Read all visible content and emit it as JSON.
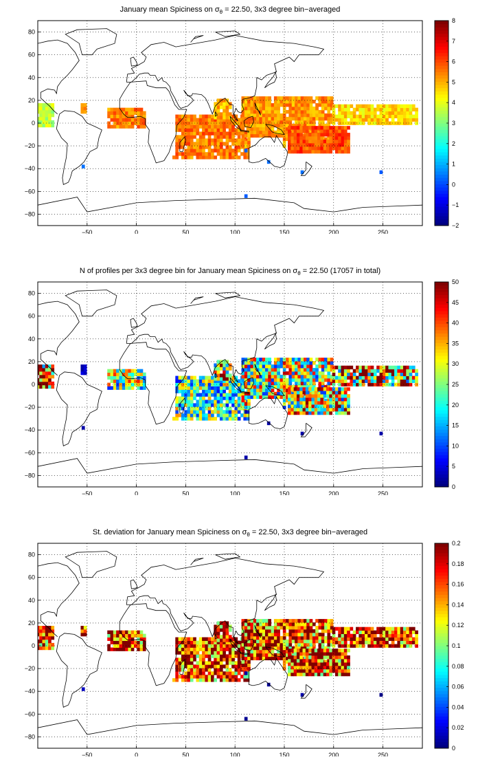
{
  "panels": [
    {
      "title_pre": "January mean Spiciness on σ",
      "title_sub": "θ",
      "title_post": " = 22.50, 3x3 degree bin−averaged",
      "colorbar_ticks": [
        "−2",
        "−1",
        "0",
        "1",
        "2",
        "3",
        "4",
        "5",
        "6",
        "7",
        "8"
      ],
      "colorbar_range": [
        -2,
        8
      ]
    },
    {
      "title_pre": "N of profiles per 3x3 degree bin for January mean Spiciness on σ",
      "title_sub": "θ",
      "title_post": " = 22.50 (17057 in total)",
      "colorbar_ticks": [
        "0",
        "5",
        "10",
        "15",
        "20",
        "25",
        "30",
        "35",
        "40",
        "45",
        "50"
      ],
      "colorbar_range": [
        0,
        50
      ]
    },
    {
      "title_pre": "St. deviation for January mean Spiciness on σ",
      "title_sub": "θ",
      "title_post": " = 22.50, 3x3 degree bin−averaged",
      "colorbar_ticks": [
        "0",
        "0.02",
        "0.04",
        "0.06",
        "0.08",
        "0.1",
        "0.12",
        "0.14",
        "0.16",
        "0.18",
        "0.2"
      ],
      "colorbar_range": [
        0,
        0.2
      ]
    }
  ],
  "map": {
    "x_ticks": [
      "−50",
      "0",
      "50",
      "100",
      "150",
      "200",
      "250"
    ],
    "y_ticks": [
      "80",
      "60",
      "40",
      "20",
      "0",
      "−20",
      "−40",
      "−60",
      "−80"
    ],
    "x_range": [
      -100,
      290
    ],
    "y_range": [
      -90,
      90
    ],
    "grid": "dotted",
    "colormap": "jet"
  }
}
